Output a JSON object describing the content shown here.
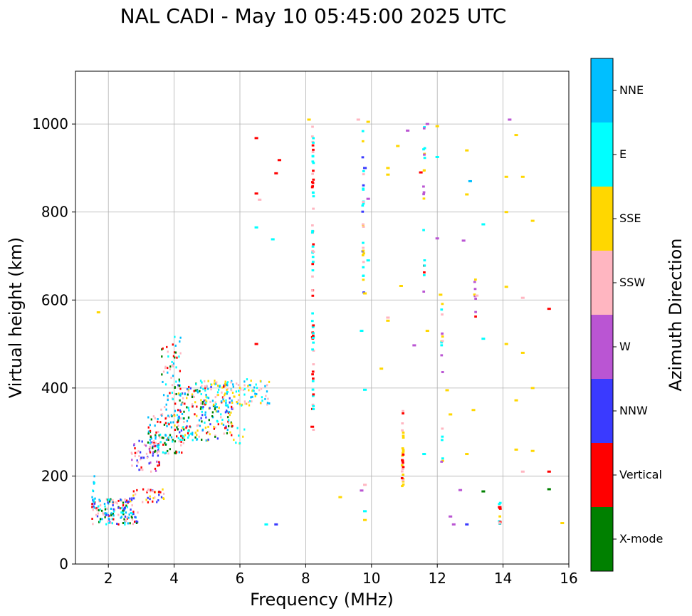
{
  "chart_data": {
    "type": "scatter",
    "title": "NAL CADI - May 10 05:45:00 2025 UTC",
    "xlabel": "Frequency (MHz)",
    "ylabel": "Virtual height (km)",
    "xlim": [
      1,
      16
    ],
    "ylim": [
      0,
      1120
    ],
    "xticks": [
      2,
      4,
      6,
      8,
      10,
      12,
      14,
      16
    ],
    "yticks": [
      0,
      200,
      400,
      600,
      800,
      1000
    ],
    "grid": true,
    "colorbar": {
      "label": "Azimuth Direction",
      "categories": [
        {
          "name": "X-mode",
          "color": "#008000"
        },
        {
          "name": "Vertical",
          "color": "#ff0000"
        },
        {
          "name": "NNW",
          "color": "#3a3aff"
        },
        {
          "name": "W",
          "color": "#ba55d3"
        },
        {
          "name": "SSW",
          "color": "#ffb6c1"
        },
        {
          "name": "SSE",
          "color": "#ffd700"
        },
        {
          "name": "E",
          "color": "#00ffff"
        },
        {
          "name": "NNE",
          "color": "#00bfff"
        }
      ]
    },
    "echo_regions": [
      {
        "f": [
          1.5,
          2.9
        ],
        "h": [
          90,
          150
        ],
        "dir": [
          "Vertical",
          "NNW",
          "E",
          "SSW",
          "NNE",
          "X-mode"
        ],
        "n": 150
      },
      {
        "f": [
          1.5,
          1.6
        ],
        "h": [
          140,
          200
        ],
        "dir": [
          "E",
          "NNE"
        ],
        "n": 10
      },
      {
        "f": [
          2.5,
          3.7
        ],
        "h": [
          140,
          170
        ],
        "dir": [
          "SSW",
          "Vertical",
          "NNW",
          "SSE"
        ],
        "n": 40
      },
      {
        "f": [
          2.7,
          3.6
        ],
        "h": [
          210,
          280
        ],
        "dir": [
          "Vertical",
          "NNW",
          "SSW",
          "W"
        ],
        "n": 60
      },
      {
        "f": [
          3.2,
          4.3
        ],
        "h": [
          250,
          340
        ],
        "dir": [
          "Vertical",
          "NNE",
          "E",
          "X-mode",
          "SSW"
        ],
        "n": 110
      },
      {
        "f": [
          3.6,
          4.2
        ],
        "h": [
          330,
          520
        ],
        "dir": [
          "Vertical",
          "E",
          "NNE",
          "SSW",
          "X-mode"
        ],
        "n": 60
      },
      {
        "f": [
          4.0,
          5.8
        ],
        "h": [
          280,
          410
        ],
        "dir": [
          "NNE",
          "E",
          "SSE",
          "Vertical",
          "X-mode",
          "SSW",
          "NNW"
        ],
        "n": 230
      },
      {
        "f": [
          4.8,
          6.9
        ],
        "h": [
          360,
          420
        ],
        "dir": [
          "E",
          "NNE",
          "SSE",
          "SSW"
        ],
        "n": 120
      },
      {
        "f": [
          5.8,
          6.2
        ],
        "h": [
          260,
          320
        ],
        "dir": [
          "SSE",
          "E"
        ],
        "n": 8
      }
    ],
    "echo_points": [
      {
        "f": 1.7,
        "h": 572,
        "dir": "SSE"
      },
      {
        "f": 6.5,
        "h": 968,
        "dir": "Vertical"
      },
      {
        "f": 7.2,
        "h": 918,
        "dir": "Vertical"
      },
      {
        "f": 7.1,
        "h": 888,
        "dir": "Vertical"
      },
      {
        "f": 6.5,
        "h": 842,
        "dir": "Vertical"
      },
      {
        "f": 6.6,
        "h": 828,
        "dir": "SSW"
      },
      {
        "f": 6.5,
        "h": 765,
        "dir": "E"
      },
      {
        "f": 7.0,
        "h": 738,
        "dir": "E"
      },
      {
        "f": 6.5,
        "h": 500,
        "dir": "Vertical"
      },
      {
        "f": 6.8,
        "h": 90,
        "dir": "E"
      },
      {
        "f": 7.1,
        "h": 90,
        "dir": "NNW"
      },
      {
        "f": 8.1,
        "h": 1010,
        "dir": "SSE"
      },
      {
        "f": 8.2,
        "h": 312,
        "dir": "Vertical"
      },
      {
        "f": 9.05,
        "h": 152,
        "dir": "SSE"
      },
      {
        "f": 9.6,
        "h": 1010,
        "dir": "SSW"
      },
      {
        "f": 9.9,
        "h": 1005,
        "dir": "SSE"
      },
      {
        "f": 9.8,
        "h": 900,
        "dir": "NNW"
      },
      {
        "f": 9.9,
        "h": 830,
        "dir": "W"
      },
      {
        "f": 9.9,
        "h": 690,
        "dir": "E"
      },
      {
        "f": 9.8,
        "h": 615,
        "dir": "SSE"
      },
      {
        "f": 9.7,
        "h": 530,
        "dir": "E"
      },
      {
        "f": 9.8,
        "h": 396,
        "dir": "E"
      },
      {
        "f": 9.8,
        "h": 180,
        "dir": "SSW"
      },
      {
        "f": 9.7,
        "h": 167,
        "dir": "W"
      },
      {
        "f": 9.8,
        "h": 120,
        "dir": "E"
      },
      {
        "f": 9.8,
        "h": 100,
        "dir": "SSE"
      },
      {
        "f": 10.3,
        "h": 444,
        "dir": "SSE"
      },
      {
        "f": 10.5,
        "h": 560,
        "dir": "SSW"
      },
      {
        "f": 10.5,
        "h": 553,
        "dir": "SSE"
      },
      {
        "f": 10.5,
        "h": 885,
        "dir": "SSE"
      },
      {
        "f": 10.5,
        "h": 900,
        "dir": "SSE"
      },
      {
        "f": 10.8,
        "h": 950,
        "dir": "SSE"
      },
      {
        "f": 10.9,
        "h": 632,
        "dir": "SSE"
      },
      {
        "f": 11.1,
        "h": 985,
        "dir": "W"
      },
      {
        "f": 11.3,
        "h": 497,
        "dir": "W"
      },
      {
        "f": 11.5,
        "h": 890,
        "dir": "Vertical"
      },
      {
        "f": 11.7,
        "h": 1000,
        "dir": "W"
      },
      {
        "f": 11.7,
        "h": 530,
        "dir": "SSE"
      },
      {
        "f": 11.6,
        "h": 250,
        "dir": "E"
      },
      {
        "f": 12.0,
        "h": 995,
        "dir": "SSE"
      },
      {
        "f": 12.0,
        "h": 925,
        "dir": "E"
      },
      {
        "f": 12.0,
        "h": 740,
        "dir": "W"
      },
      {
        "f": 12.1,
        "h": 612,
        "dir": "SSE"
      },
      {
        "f": 12.3,
        "h": 395,
        "dir": "SSE"
      },
      {
        "f": 12.4,
        "h": 340,
        "dir": "SSE"
      },
      {
        "f": 12.4,
        "h": 108,
        "dir": "W"
      },
      {
        "f": 12.5,
        "h": 90,
        "dir": "W"
      },
      {
        "f": 12.9,
        "h": 940,
        "dir": "SSE"
      },
      {
        "f": 13.0,
        "h": 870,
        "dir": "NNE"
      },
      {
        "f": 12.9,
        "h": 840,
        "dir": "SSE"
      },
      {
        "f": 12.8,
        "h": 735,
        "dir": "W"
      },
      {
        "f": 13.4,
        "h": 772,
        "dir": "E"
      },
      {
        "f": 13.4,
        "h": 512,
        "dir": "E"
      },
      {
        "f": 13.2,
        "h": 610,
        "dir": "SSW"
      },
      {
        "f": 13.1,
        "h": 350,
        "dir": "SSE"
      },
      {
        "f": 12.9,
        "h": 250,
        "dir": "SSE"
      },
      {
        "f": 12.7,
        "h": 168,
        "dir": "W"
      },
      {
        "f": 12.9,
        "h": 90,
        "dir": "NNW"
      },
      {
        "f": 13.4,
        "h": 165,
        "dir": "X-mode"
      },
      {
        "f": 14.2,
        "h": 1010,
        "dir": "W"
      },
      {
        "f": 14.4,
        "h": 975,
        "dir": "SSE"
      },
      {
        "f": 14.1,
        "h": 880,
        "dir": "SSE"
      },
      {
        "f": 14.6,
        "h": 880,
        "dir": "SSE"
      },
      {
        "f": 14.1,
        "h": 800,
        "dir": "SSE"
      },
      {
        "f": 14.9,
        "h": 780,
        "dir": "SSE"
      },
      {
        "f": 14.1,
        "h": 630,
        "dir": "SSE"
      },
      {
        "f": 14.6,
        "h": 605,
        "dir": "SSW"
      },
      {
        "f": 14.1,
        "h": 500,
        "dir": "SSE"
      },
      {
        "f": 14.6,
        "h": 480,
        "dir": "SSE"
      },
      {
        "f": 14.9,
        "h": 400,
        "dir": "SSE"
      },
      {
        "f": 14.4,
        "h": 372,
        "dir": "SSE"
      },
      {
        "f": 14.4,
        "h": 260,
        "dir": "SSE"
      },
      {
        "f": 14.9,
        "h": 257,
        "dir": "SSE"
      },
      {
        "f": 14.6,
        "h": 210,
        "dir": "SSW"
      },
      {
        "f": 15.4,
        "h": 580,
        "dir": "Vertical"
      },
      {
        "f": 15.4,
        "h": 210,
        "dir": "Vertical"
      },
      {
        "f": 15.4,
        "h": 170,
        "dir": "X-mode"
      },
      {
        "f": 15.8,
        "h": 93,
        "dir": "SSE"
      }
    ],
    "echo_columns": [
      {
        "f": 8.22,
        "h": [
          300,
          995
        ],
        "dir": [
          "E",
          "Vertical",
          "SSW"
        ],
        "n": 70
      },
      {
        "f": 9.75,
        "h": [
          600,
          990
        ],
        "dir": [
          "E",
          "NNW",
          "SSE",
          "SSW"
        ],
        "n": 28
      },
      {
        "f": 10.95,
        "h": [
          170,
          360
        ],
        "dir": [
          "SSE",
          "SSW",
          "Vertical"
        ],
        "n": 28
      },
      {
        "f": 11.6,
        "h": [
          600,
          1000
        ],
        "dir": [
          "E",
          "SSE",
          "W",
          "Vertical"
        ],
        "n": 20
      },
      {
        "f": 12.15,
        "h": [
          200,
          640
        ],
        "dir": [
          "SSE",
          "SSW",
          "E",
          "W"
        ],
        "n": 18
      },
      {
        "f": 13.15,
        "h": [
          560,
          660
        ],
        "dir": [
          "SSE",
          "Vertical",
          "W"
        ],
        "n": 8
      },
      {
        "f": 13.9,
        "h": [
          90,
          150
        ],
        "dir": [
          "SSE",
          "SSW",
          "Vertical",
          "E"
        ],
        "n": 14
      }
    ]
  }
}
